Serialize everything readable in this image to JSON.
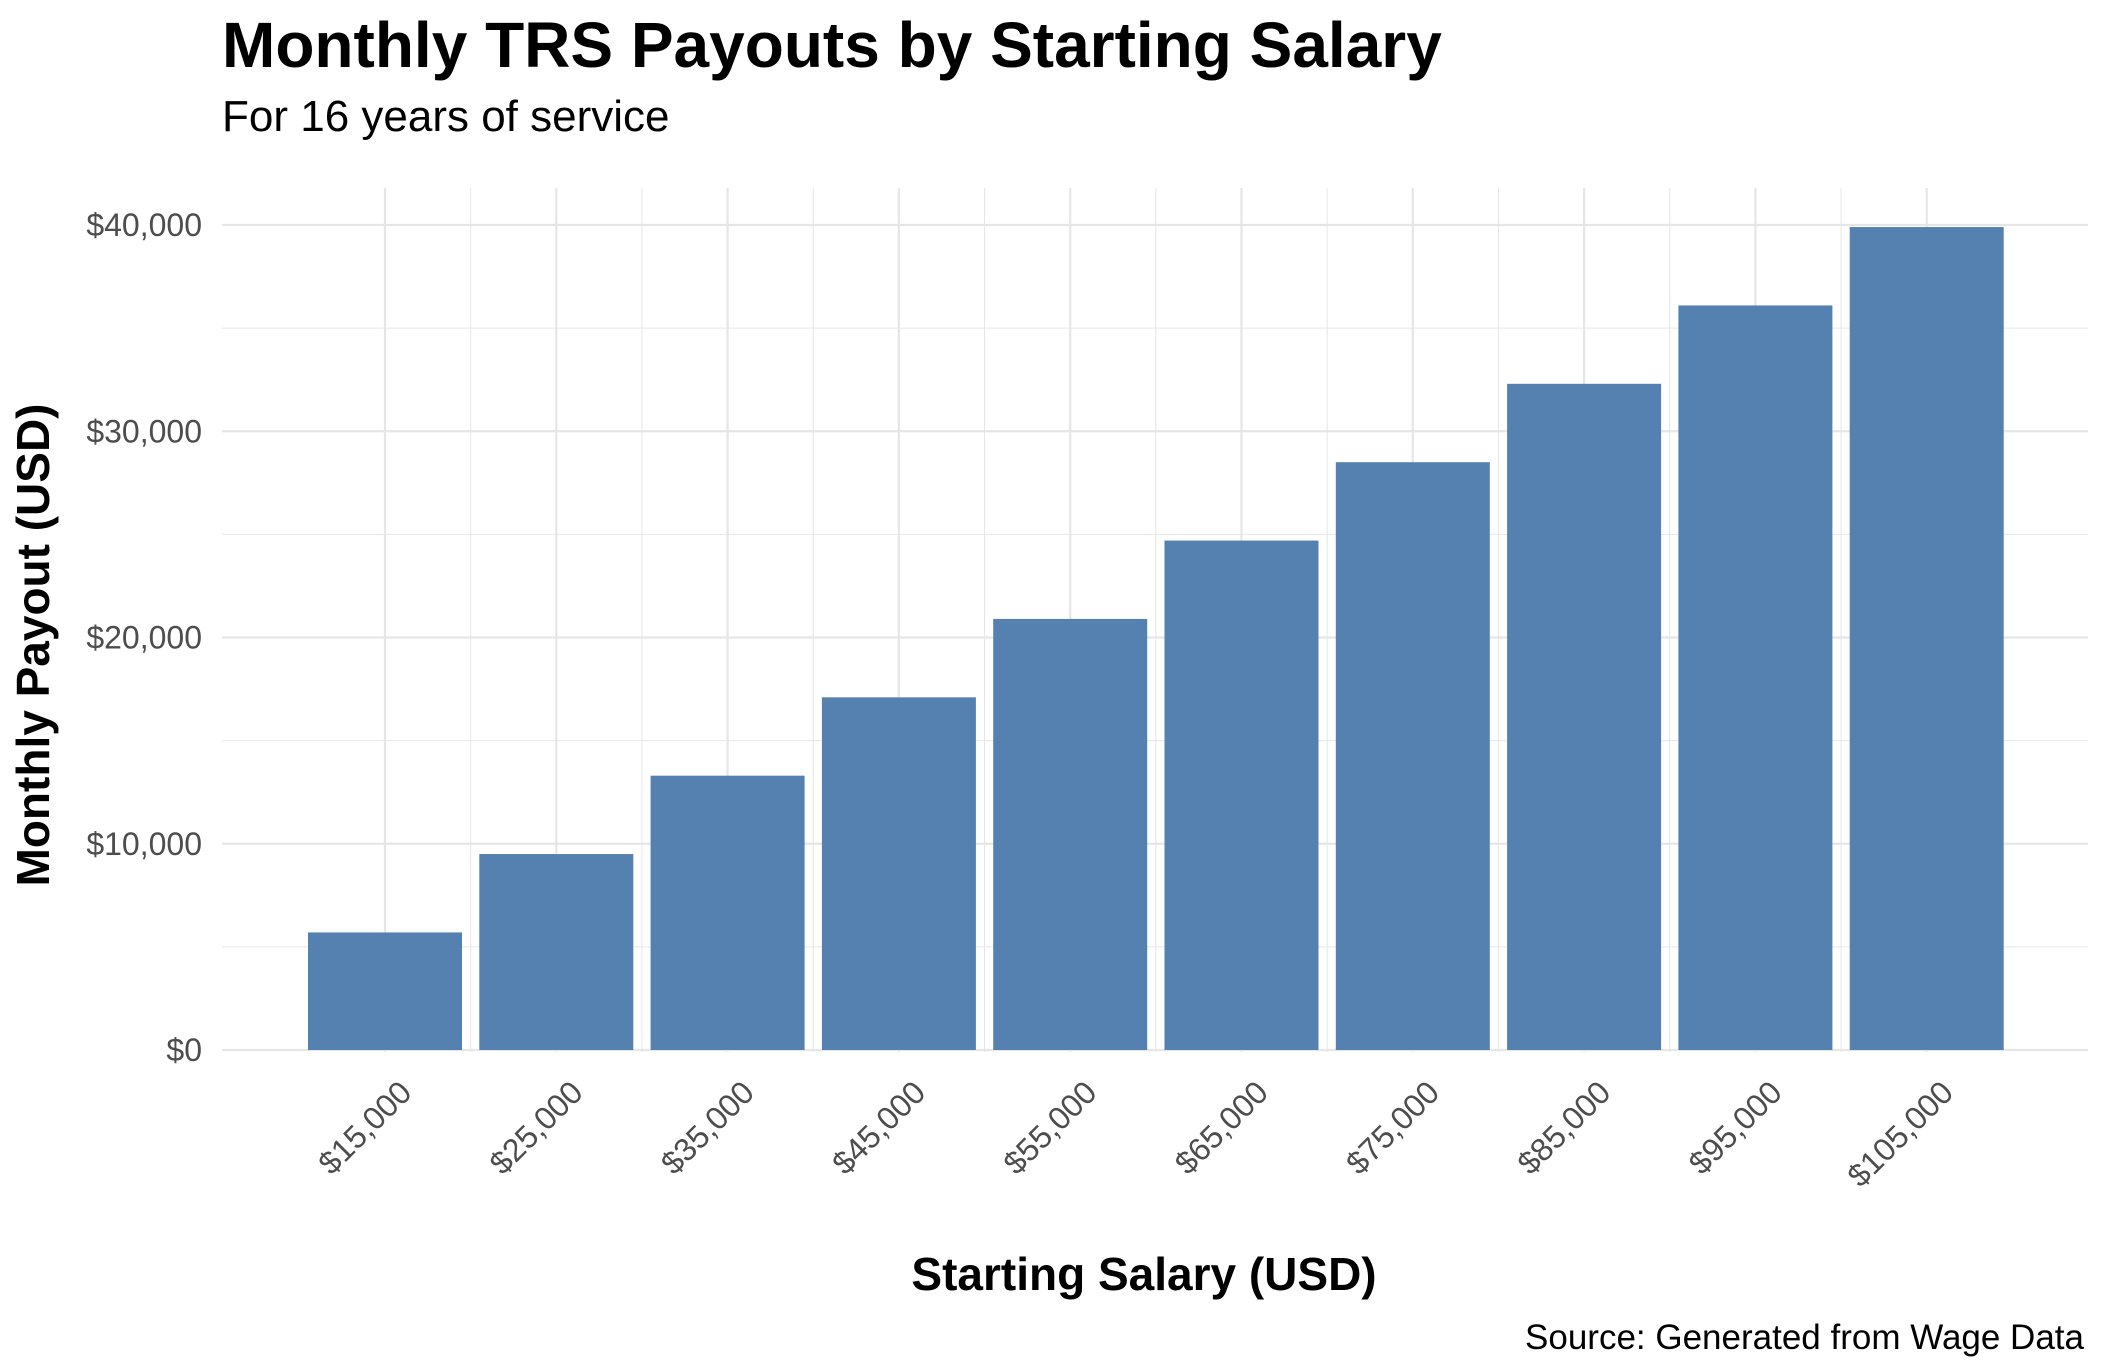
{
  "chart_data": {
    "type": "bar",
    "title": "Monthly TRS Payouts by Starting Salary",
    "subtitle": "For 16 years of service",
    "caption": "Source: Generated from Wage Data",
    "xlabel": "Starting Salary (USD)",
    "ylabel": "Monthly Payout (USD)",
    "categories": [
      "$15,000",
      "$25,000",
      "$35,000",
      "$45,000",
      "$55,000",
      "$65,000",
      "$75,000",
      "$85,000",
      "$95,000",
      "$105,000"
    ],
    "values": [
      5700,
      9500,
      13300,
      17100,
      20900,
      24700,
      28500,
      32300,
      36100,
      39900
    ],
    "ylim": [
      0,
      40000
    ],
    "yticks": [
      0,
      10000,
      20000,
      30000,
      40000
    ],
    "ytick_labels": [
      "$0",
      "$10,000",
      "$20,000",
      "$30,000",
      "$40,000"
    ],
    "bar_color": "#5581b0",
    "grid_color": "#e6e6e6",
    "grid": true,
    "legend": "none"
  }
}
